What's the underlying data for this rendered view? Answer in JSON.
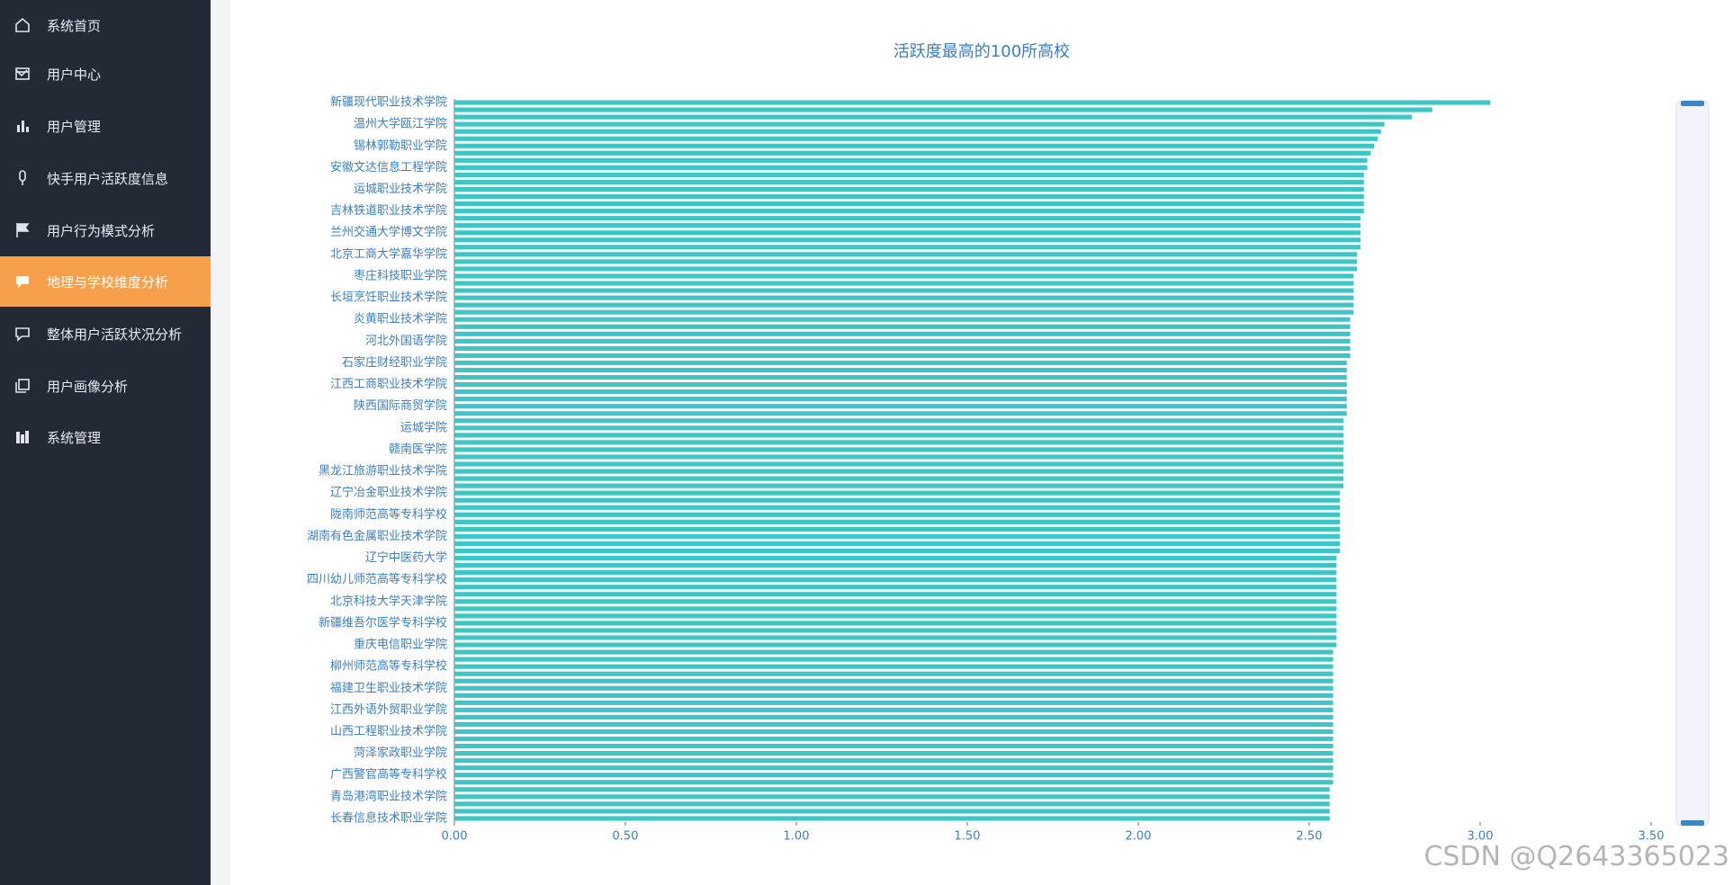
{
  "sidebar": {
    "items": [
      "系统首页",
      "用户中心",
      "用户管理",
      "快手用户活跃度信息",
      "用户行为模式分析",
      "地理与学校维度分析",
      "整体用户活跃状况分析",
      "用户画像分析",
      "系统管理"
    ]
  },
  "chart_data": {
    "type": "hbar",
    "title": "活跃度最高的100所高校",
    "color": "#3ec6c6",
    "categories": [
      "新疆现代职业技术学院",
      null,
      null,
      "温州大学瓯江学院",
      null,
      null,
      "锡林郭勒职业学院",
      null,
      null,
      "安徽文达信息工程学院",
      null,
      null,
      "运城职业技术学院",
      null,
      null,
      "吉林铁道职业技术学院",
      null,
      null,
      "兰州交通大学博文学院",
      null,
      null,
      "北京工商大学嘉华学院",
      null,
      null,
      "枣庄科技职业学院",
      null,
      null,
      "长垣烹饪职业技术学院",
      null,
      null,
      "炎黄职业技术学院",
      null,
      null,
      "河北外国语学院",
      null,
      null,
      "石家庄财经职业学院",
      null,
      null,
      "江西工商职业技术学院",
      null,
      null,
      "陕西国际商贸学院",
      null,
      null,
      "运城学院",
      null,
      null,
      "赣南医学院",
      null,
      null,
      "黑龙江旅游职业技术学院",
      null,
      null,
      "辽宁冶金职业技术学院",
      null,
      null,
      "陇南师范高等专科学校",
      null,
      null,
      "湖南有色金属职业技术学院",
      null,
      null,
      "辽宁中医药大学",
      null,
      null,
      "四川幼儿师范高等专科学校",
      null,
      null,
      "北京科技大学天津学院",
      null,
      null,
      "新疆维吾尔医学专科学校",
      null,
      null,
      "重庆电信职业学院",
      null,
      null,
      "柳州师范高等专科学校",
      null,
      null,
      "福建卫生职业技术学院",
      null,
      null,
      "江西外语外贸职业学院",
      null,
      null,
      "山西工程职业技术学院",
      null,
      null,
      "菏泽家政职业学院",
      null,
      null,
      "广西警官高等专科学校",
      null,
      null,
      "青岛港湾职业技术学院",
      null,
      null,
      "长春信息技术职业学院"
    ],
    "values": [
      3.03,
      2.86,
      2.8,
      2.72,
      2.71,
      2.7,
      2.69,
      2.68,
      2.67,
      2.67,
      2.66,
      2.66,
      2.66,
      2.66,
      2.66,
      2.66,
      2.65,
      2.65,
      2.65,
      2.65,
      2.65,
      2.64,
      2.64,
      2.64,
      2.63,
      2.63,
      2.63,
      2.63,
      2.63,
      2.63,
      2.62,
      2.62,
      2.62,
      2.62,
      2.62,
      2.62,
      2.61,
      2.61,
      2.61,
      2.61,
      2.61,
      2.61,
      2.61,
      2.61,
      2.6,
      2.6,
      2.6,
      2.6,
      2.6,
      2.6,
      2.6,
      2.6,
      2.6,
      2.6,
      2.59,
      2.59,
      2.59,
      2.59,
      2.59,
      2.59,
      2.59,
      2.59,
      2.59,
      2.58,
      2.58,
      2.58,
      2.58,
      2.58,
      2.58,
      2.58,
      2.58,
      2.58,
      2.58,
      2.58,
      2.58,
      2.58,
      2.57,
      2.57,
      2.57,
      2.57,
      2.57,
      2.57,
      2.57,
      2.57,
      2.57,
      2.57,
      2.57,
      2.57,
      2.57,
      2.57,
      2.57,
      2.57,
      2.57,
      2.57,
      2.57,
      2.56,
      2.56,
      2.56,
      2.56,
      2.56
    ],
    "xlim": [
      0,
      3.5
    ],
    "xticks": [
      {
        "value": 0,
        "label": "0.00"
      },
      {
        "value": 0.5,
        "label": "0.50"
      },
      {
        "value": 1,
        "label": "1.00"
      },
      {
        "value": 1.5,
        "label": "1.50"
      },
      {
        "value": 2,
        "label": "2.00"
      },
      {
        "value": 2.5,
        "label": "2.50"
      },
      {
        "value": 3,
        "label": "3.00"
      },
      {
        "value": 3.5,
        "label": "3.50"
      }
    ]
  },
  "watermark": "CSDN @Q2643365023"
}
